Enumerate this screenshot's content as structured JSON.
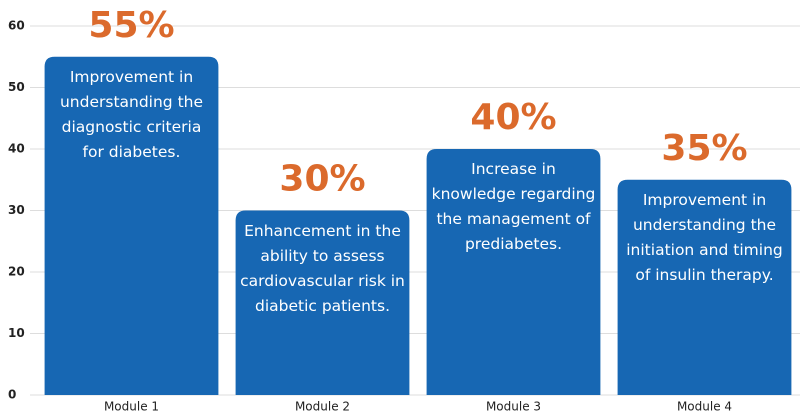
{
  "chart_data": {
    "type": "bar",
    "categories": [
      "Module 1",
      "Module 2",
      "Module 3",
      "Module 4"
    ],
    "values": [
      55,
      30,
      40,
      35
    ],
    "value_labels": [
      "55%",
      "30%",
      "40%",
      "35%"
    ],
    "annotations": [
      "Improvement in understanding the diagnostic criteria for diabetes.",
      "Enhancement in the ability to assess cardiovascular risk in diabetic patients.",
      "Increase in knowledge regarding the management of prediabetes.",
      "Improvement in understanding the initiation and timing of insulin therapy."
    ],
    "color": "#1767b3",
    "value_label_color": "#db6a2c",
    "ylim": [
      0,
      60
    ],
    "yticks": [
      0,
      10,
      20,
      30,
      40,
      50,
      60
    ],
    "grid": true
  }
}
